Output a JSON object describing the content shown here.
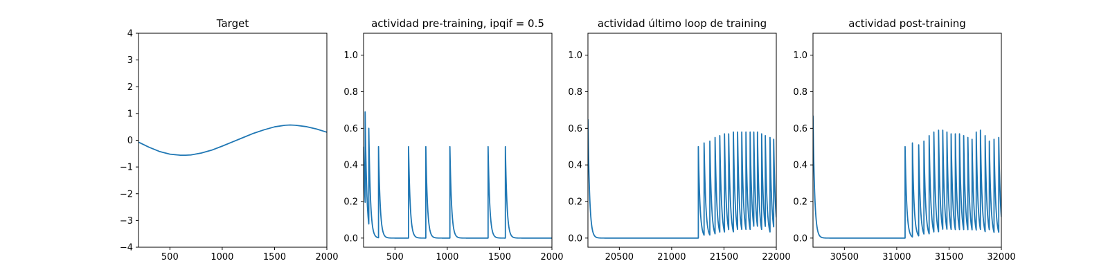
{
  "chart_data": [
    {
      "type": "line",
      "title": "Target",
      "xlim": [
        200,
        2000
      ],
      "ylim": [
        -4,
        4
      ],
      "xticks": [
        500,
        1000,
        1500,
        2000
      ],
      "yticks": [
        -4,
        -3,
        -2,
        -1,
        0,
        1,
        2,
        3,
        4
      ],
      "xtick_labels": [
        "500",
        "1000",
        "1500",
        "2000"
      ],
      "ytick_labels": [
        "−4",
        "−3",
        "−2",
        "−1",
        "0",
        "1",
        "2",
        "3",
        "4"
      ],
      "color": "#1f77b4",
      "series": [
        {
          "x": [
            200,
            300,
            400,
            500,
            600,
            650,
            700,
            800,
            900,
            1000,
            1100,
            1200,
            1300,
            1400,
            1500,
            1600,
            1650,
            1700,
            1800,
            1900,
            2000
          ],
          "y": [
            -0.07,
            -0.26,
            -0.42,
            -0.52,
            -0.56,
            -0.56,
            -0.55,
            -0.48,
            -0.37,
            -0.22,
            -0.06,
            0.1,
            0.26,
            0.39,
            0.5,
            0.56,
            0.57,
            0.56,
            0.51,
            0.42,
            0.3
          ]
        }
      ]
    },
    {
      "type": "line",
      "title": "actividad pre-training, ipqif = 0.5",
      "xlim": [
        200,
        2000
      ],
      "ylim": [
        -0.05,
        1.12
      ],
      "xticks": [
        500,
        1000,
        1500,
        2000
      ],
      "yticks": [
        0.0,
        0.2,
        0.4,
        0.6,
        0.8,
        1.0
      ],
      "xtick_labels": [
        "500",
        "1000",
        "1500",
        "2000"
      ],
      "ytick_labels": [
        "0.0",
        "0.2",
        "0.4",
        "0.6",
        "0.8",
        "1.0"
      ],
      "color": "#1f77b4",
      "start_value": 0.5,
      "baseline": 0.0,
      "decay": 16,
      "spikes": [
        {
          "x": 215,
          "peak": 0.69
        },
        {
          "x": 250,
          "peak": 0.6
        },
        {
          "x": 343,
          "peak": 0.5
        },
        {
          "x": 630,
          "peak": 0.5
        },
        {
          "x": 795,
          "peak": 0.5
        },
        {
          "x": 1025,
          "peak": 0.5
        },
        {
          "x": 1390,
          "peak": 0.5
        },
        {
          "x": 1555,
          "peak": 0.5
        }
      ]
    },
    {
      "type": "line",
      "title": "actividad último loop de training",
      "xlim": [
        20200,
        22000
      ],
      "ylim": [
        -0.05,
        1.12
      ],
      "xticks": [
        20500,
        21000,
        21500,
        22000
      ],
      "yticks": [
        0.0,
        0.2,
        0.4,
        0.6,
        0.8,
        1.0
      ],
      "xtick_labels": [
        "20500",
        "21000",
        "21500",
        "22000"
      ],
      "ytick_labels": [
        "0.0",
        "0.2",
        "0.4",
        "0.6",
        "0.8",
        "1.0"
      ],
      "color": "#1f77b4",
      "start_value": 0.65,
      "baseline": 0.0,
      "decay": 16,
      "spikes": [
        {
          "x": 21255,
          "peak": 0.5
        },
        {
          "x": 21310,
          "peak": 0.52
        },
        {
          "x": 21365,
          "peak": 0.53
        },
        {
          "x": 21415,
          "peak": 0.55
        },
        {
          "x": 21460,
          "peak": 0.56
        },
        {
          "x": 21505,
          "peak": 0.57
        },
        {
          "x": 21545,
          "peak": 0.57
        },
        {
          "x": 21590,
          "peak": 0.58
        },
        {
          "x": 21630,
          "peak": 0.58
        },
        {
          "x": 21670,
          "peak": 0.58
        },
        {
          "x": 21710,
          "peak": 0.58
        },
        {
          "x": 21750,
          "peak": 0.58
        },
        {
          "x": 21785,
          "peak": 0.58
        },
        {
          "x": 21820,
          "peak": 0.58
        },
        {
          "x": 21860,
          "peak": 0.57
        },
        {
          "x": 21895,
          "peak": 0.56
        },
        {
          "x": 21940,
          "peak": 0.55
        },
        {
          "x": 21975,
          "peak": 0.54
        }
      ]
    },
    {
      "type": "line",
      "title": "actividad post-training",
      "xlim": [
        30200,
        32000
      ],
      "ylim": [
        -0.05,
        1.12
      ],
      "xticks": [
        30500,
        31000,
        31500,
        32000
      ],
      "yticks": [
        0.0,
        0.2,
        0.4,
        0.6,
        0.8,
        1.0
      ],
      "xtick_labels": [
        "30500",
        "31000",
        "31500",
        "32000"
      ],
      "ytick_labels": [
        "0.0",
        "0.2",
        "0.4",
        "0.6",
        "0.8",
        "1.0"
      ],
      "color": "#1f77b4",
      "start_value": 0.67,
      "baseline": 0.0,
      "decay": 16,
      "spikes": [
        {
          "x": 31080,
          "peak": 0.5
        },
        {
          "x": 31150,
          "peak": 0.52
        },
        {
          "x": 31210,
          "peak": 0.51
        },
        {
          "x": 31260,
          "peak": 0.53
        },
        {
          "x": 31310,
          "peak": 0.56
        },
        {
          "x": 31355,
          "peak": 0.58
        },
        {
          "x": 31400,
          "peak": 0.59
        },
        {
          "x": 31440,
          "peak": 0.59
        },
        {
          "x": 31480,
          "peak": 0.58
        },
        {
          "x": 31520,
          "peak": 0.57
        },
        {
          "x": 31560,
          "peak": 0.57
        },
        {
          "x": 31600,
          "peak": 0.57
        },
        {
          "x": 31640,
          "peak": 0.56
        },
        {
          "x": 31680,
          "peak": 0.55
        },
        {
          "x": 31720,
          "peak": 0.54
        },
        {
          "x": 31760,
          "peak": 0.58
        },
        {
          "x": 31800,
          "peak": 0.59
        },
        {
          "x": 31845,
          "peak": 0.56
        },
        {
          "x": 31885,
          "peak": 0.53
        },
        {
          "x": 31930,
          "peak": 0.54
        },
        {
          "x": 31975,
          "peak": 0.55
        }
      ]
    }
  ]
}
